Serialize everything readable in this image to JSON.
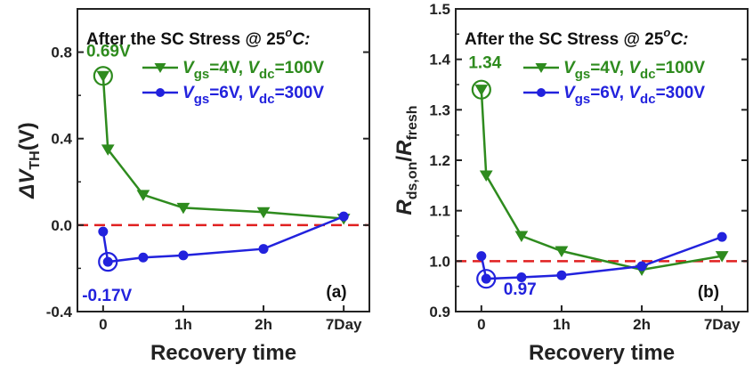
{
  "chart_data": [
    {
      "type": "line",
      "panel_label": "(a)",
      "title": "After the SC Stress @ 25",
      "title_sup": "o",
      "title_tail": "C:",
      "ylabel": {
        "prefix": "ΔV",
        "sub": "TH",
        "suffix": "(V)"
      },
      "xlabel": "Recovery time",
      "ylim": [
        -0.4,
        1.0
      ],
      "yticks": [
        {
          "v": -0.4,
          "label": "-0.4"
        },
        {
          "v": 0.0,
          "label": "0.0"
        },
        {
          "v": 0.4,
          "label": "0.4"
        },
        {
          "v": 0.8,
          "label": "0.8"
        }
      ],
      "xticks": [
        {
          "v": 0,
          "label": "0"
        },
        {
          "v": 1,
          "label": "1h"
        },
        {
          "v": 2,
          "label": "2h"
        },
        {
          "v": 3,
          "label": "7Day"
        }
      ],
      "xlim": [
        -0.32,
        3.32
      ],
      "reference_line": 0.0,
      "series": [
        {
          "name": "Vgs=4V, Vdc=100V",
          "legend": {
            "p1": "V",
            "s1": "gs",
            "m": "=4V, ",
            "p2": "V",
            "s2": "dc",
            "t": "=100V"
          },
          "color": "#2e8b1e",
          "marker": "triangle",
          "x": [
            0,
            0.06,
            0.5,
            1,
            2,
            3
          ],
          "y": [
            0.69,
            0.35,
            0.14,
            0.08,
            0.06,
            0.03
          ]
        },
        {
          "name": "Vgs=6V, Vdc=300V",
          "legend": {
            "p1": "V",
            "s1": "gs",
            "m": "=6V, ",
            "p2": "V",
            "s2": "dc",
            "t": "=300V"
          },
          "color": "#2222dd",
          "marker": "circle",
          "x": [
            0,
            0.06,
            0.5,
            1,
            2,
            3
          ],
          "y": [
            -0.03,
            -0.17,
            -0.15,
            -0.14,
            -0.11,
            0.04
          ]
        }
      ],
      "annotations": [
        {
          "series": 0,
          "point": 0,
          "text": "0.69V"
        },
        {
          "series": 1,
          "point": 1,
          "text": "-0.17V"
        }
      ]
    },
    {
      "type": "line",
      "panel_label": "(b)",
      "title": "After the SC Stress @ 25",
      "title_sup": "o",
      "title_tail": "C:",
      "ylabel": {
        "p1": "R",
        "s1": "ds,on",
        "m": "/",
        "p2": "R",
        "s2": "fresh"
      },
      "xlabel": "Recovery time",
      "ylim": [
        0.9,
        1.5
      ],
      "yticks": [
        {
          "v": 0.9,
          "label": "0.9"
        },
        {
          "v": 1.0,
          "label": "1.0"
        },
        {
          "v": 1.1,
          "label": "1.1"
        },
        {
          "v": 1.2,
          "label": "1.2"
        },
        {
          "v": 1.3,
          "label": "1.3"
        },
        {
          "v": 1.4,
          "label": "1.4"
        },
        {
          "v": 1.5,
          "label": "1.5"
        }
      ],
      "xticks": [
        {
          "v": 0,
          "label": "0"
        },
        {
          "v": 1,
          "label": "1h"
        },
        {
          "v": 2,
          "label": "2h"
        },
        {
          "v": 3,
          "label": "7Day"
        }
      ],
      "xlim": [
        -0.32,
        3.32
      ],
      "reference_line": 1.0,
      "series": [
        {
          "name": "Vgs=4V, Vdc=100V",
          "legend": {
            "p1": "V",
            "s1": "gs",
            "m": "=4V, ",
            "p2": "V",
            "s2": "dc",
            "t": "=100V"
          },
          "color": "#2e8b1e",
          "marker": "triangle",
          "x": [
            0,
            0.06,
            0.5,
            1,
            2,
            3
          ],
          "y": [
            1.34,
            1.17,
            1.05,
            1.02,
            0.983,
            1.01
          ]
        },
        {
          "name": "Vgs=6V, Vdc=300V",
          "legend": {
            "p1": "V",
            "s1": "gs",
            "m": "=6V, ",
            "p2": "V",
            "s2": "dc",
            "t": "=300V"
          },
          "color": "#2222dd",
          "marker": "circle",
          "x": [
            0,
            0.06,
            0.5,
            1,
            2,
            3
          ],
          "y": [
            1.01,
            0.965,
            0.968,
            0.972,
            0.99,
            1.048
          ]
        }
      ],
      "annotations": [
        {
          "series": 0,
          "point": 0,
          "text": "1.34"
        },
        {
          "series": 1,
          "point": 1,
          "text": "0.97"
        }
      ]
    }
  ]
}
